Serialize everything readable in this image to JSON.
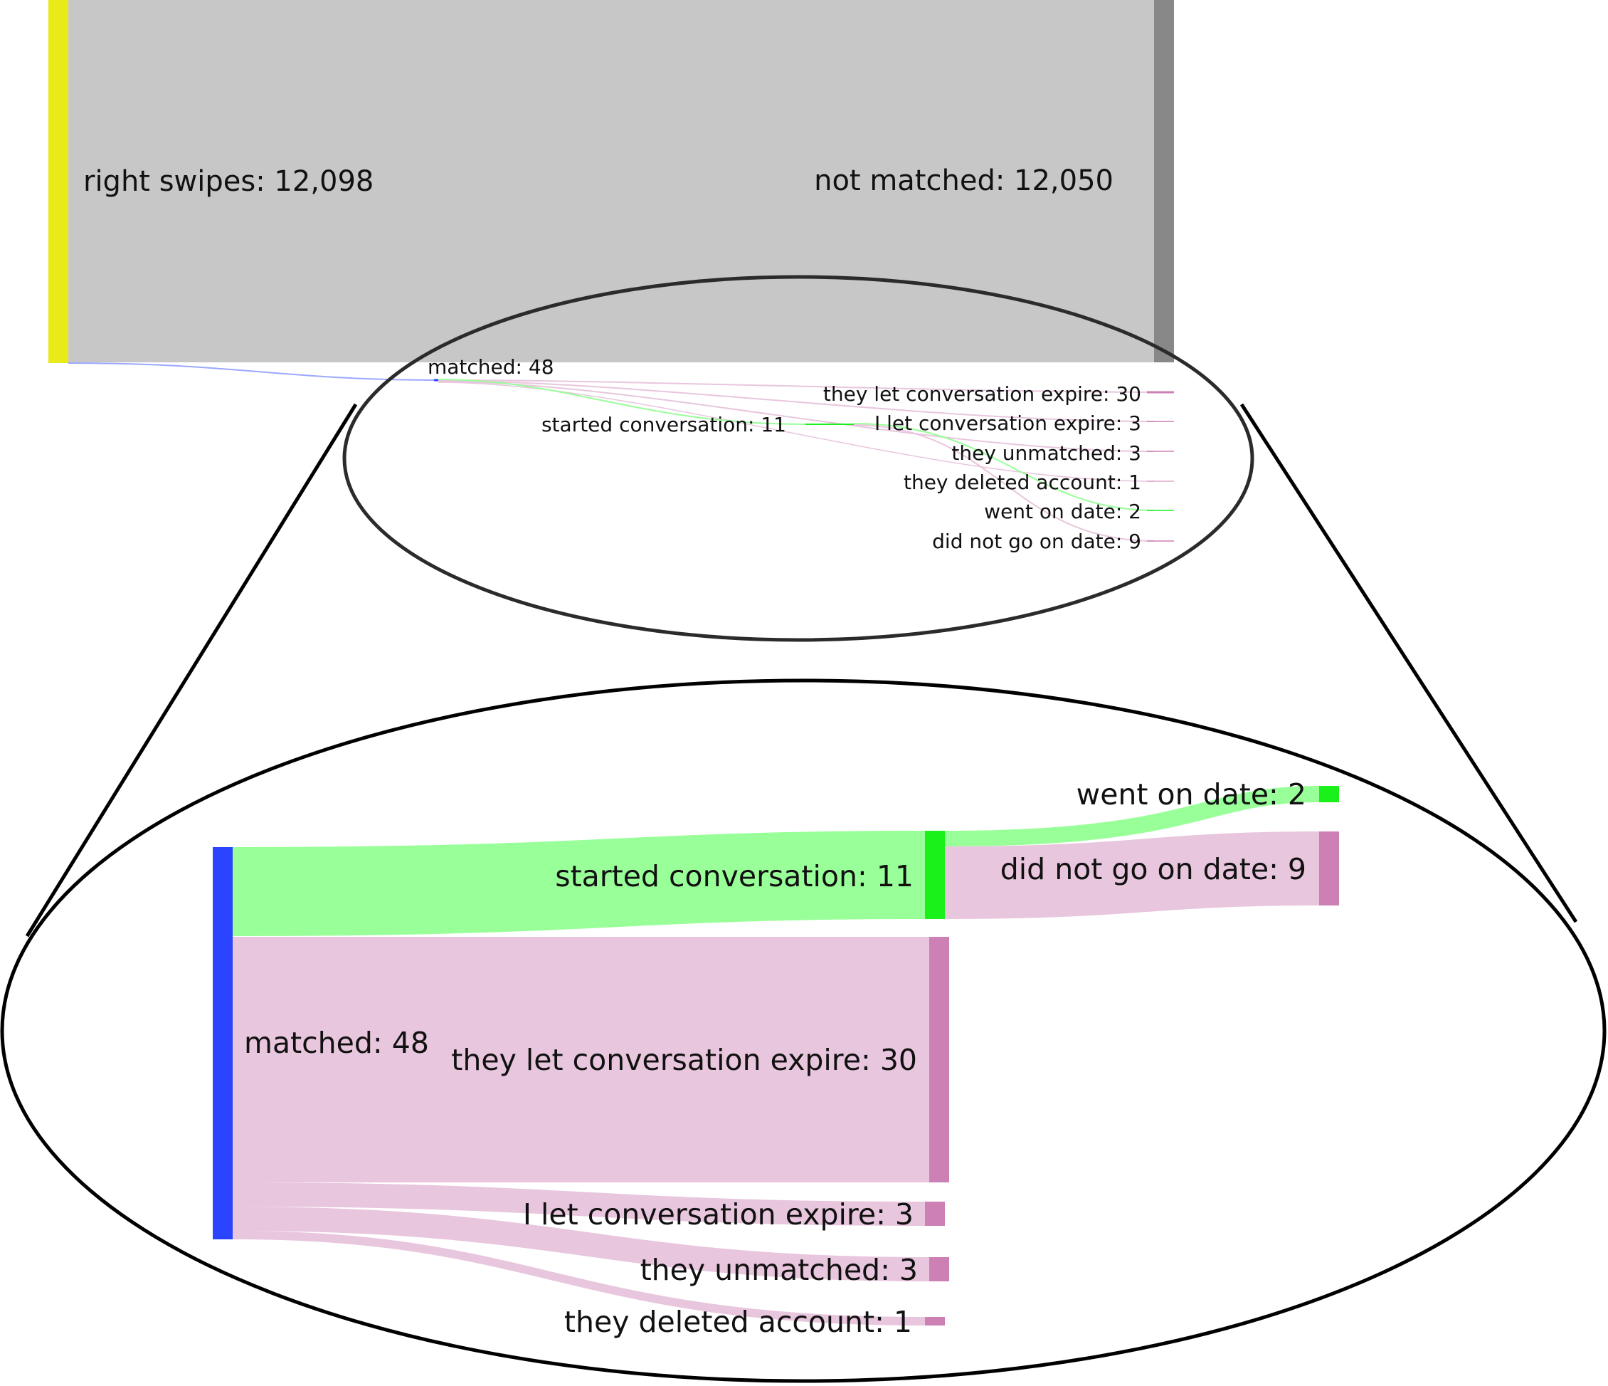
{
  "colors": {
    "background": "#ffffff",
    "right_swipes_node": "#eaea1a",
    "not_matched_node": "#888888",
    "not_matched_flow": "#c7c7c7",
    "matched_node": "#2b45ff",
    "matched_flow": "#9aa8ff",
    "conversation_node": "#1af01a",
    "conversation_flow": "#99ff99",
    "end_node": "#cc80b3",
    "end_flow": "#e8c6dd",
    "outline": "#000000"
  },
  "top_view": {
    "labels": {
      "right_swipes": "right swipes: 12,098",
      "not_matched": "not matched: 12,050",
      "matched": "matched: 48",
      "started_conversation": "started conversation: 11",
      "they_let_expire": "they let conversation expire: 30",
      "i_let_expire": "I let conversation expire: 3",
      "they_unmatched": "they unmatched: 3",
      "they_deleted": "they deleted account: 1",
      "went_on_date": "went on date: 2",
      "did_not_go": "did not go on date: 9"
    }
  },
  "zoom_view": {
    "labels": {
      "matched": "matched: 48",
      "started_conversation": "started conversation: 11",
      "they_let_expire": "they let conversation expire: 30",
      "i_let_expire": "I let conversation expire: 3",
      "they_unmatched": "they unmatched: 3",
      "they_deleted": "they deleted account: 1",
      "went_on_date": "went on date: 2",
      "did_not_go": "did not go on date: 9"
    }
  },
  "chart_data": {
    "type": "sankey",
    "nodes": [
      {
        "id": "right_swipes",
        "label": "right swipes",
        "value": 12098
      },
      {
        "id": "not_matched",
        "label": "not matched",
        "value": 12050
      },
      {
        "id": "matched",
        "label": "matched",
        "value": 48
      },
      {
        "id": "started_conversation",
        "label": "started conversation",
        "value": 11
      },
      {
        "id": "they_let_expire",
        "label": "they let conversation expire",
        "value": 30
      },
      {
        "id": "i_let_expire",
        "label": "I let conversation expire",
        "value": 3
      },
      {
        "id": "they_unmatched",
        "label": "they unmatched",
        "value": 3
      },
      {
        "id": "they_deleted",
        "label": "they deleted account",
        "value": 1
      },
      {
        "id": "went_on_date",
        "label": "went on date",
        "value": 2
      },
      {
        "id": "did_not_go",
        "label": "did not go on date",
        "value": 9
      }
    ],
    "links": [
      {
        "source": "right_swipes",
        "target": "not_matched",
        "value": 12050
      },
      {
        "source": "right_swipes",
        "target": "matched",
        "value": 48
      },
      {
        "source": "matched",
        "target": "started_conversation",
        "value": 11
      },
      {
        "source": "matched",
        "target": "they_let_expire",
        "value": 30
      },
      {
        "source": "matched",
        "target": "i_let_expire",
        "value": 3
      },
      {
        "source": "matched",
        "target": "they_unmatched",
        "value": 3
      },
      {
        "source": "matched",
        "target": "they_deleted",
        "value": 1
      },
      {
        "source": "started_conversation",
        "target": "went_on_date",
        "value": 2
      },
      {
        "source": "started_conversation",
        "target": "did_not_go",
        "value": 9
      }
    ]
  }
}
